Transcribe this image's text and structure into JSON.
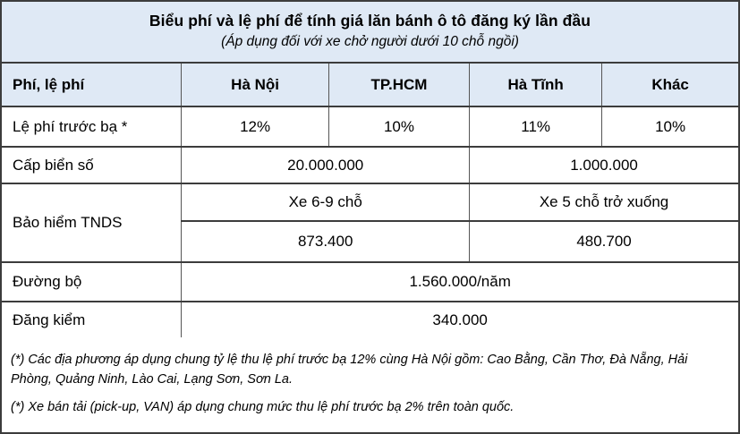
{
  "chart_data": {
    "type": "table",
    "title": "Biểu phí và lệ phí để tính giá lăn bánh ô tô đăng ký lần đầu",
    "subtitle": "(Áp dụng đối với xe chở người dưới 10 chỗ ngồi)",
    "columns": [
      "Phí, lệ phí",
      "Hà Nội",
      "TP.HCM",
      "Hà Tĩnh",
      "Khác"
    ],
    "rows": {
      "le_phi_truoc_ba": {
        "label": "Lệ phí trước bạ *",
        "ha_noi": "12%",
        "tp_hcm": "10%",
        "ha_tinh": "11%",
        "khac": "10%"
      },
      "cap_bien_so": {
        "label": "Cấp biển số",
        "ha_noi_tp_hcm": "20.000.000",
        "ha_tinh_khac": "1.000.000"
      },
      "bao_hiem_tnds": {
        "label": "Bảo hiểm TNDS",
        "ha_noi_tp_hcm_type": "Xe 6-9 chỗ",
        "ha_tinh_khac_type": "Xe 5 chỗ trở xuống",
        "ha_noi_tp_hcm_fee": "873.400",
        "ha_tinh_khac_fee": "480.700"
      },
      "duong_bo": {
        "label": "Đường bộ",
        "all_provinces": "1.560.000/năm"
      },
      "dang_kiem": {
        "label": "Đăng kiểm",
        "all_provinces": "340.000"
      }
    },
    "notes": [
      "(*) Các địa phương áp dụng chung tỷ lệ thu lệ phí trước bạ 12% cùng Hà Nội gồm: Cao Bằng, Cần Thơ, Đà Nẵng, Hải Phòng, Quảng Ninh, Lào Cai, Lạng Sơn, Sơn La.",
      "(*) Xe bán tải (pick-up, VAN) áp dụng chung mức thu lệ phí trước bạ 2% trên toàn quốc."
    ]
  },
  "colors": {
    "header_bg": "#dfe9f5",
    "border_dark": "#3c3c3c",
    "border_light": "#555555",
    "row_bg": "#ffffff",
    "text": "#000000"
  }
}
